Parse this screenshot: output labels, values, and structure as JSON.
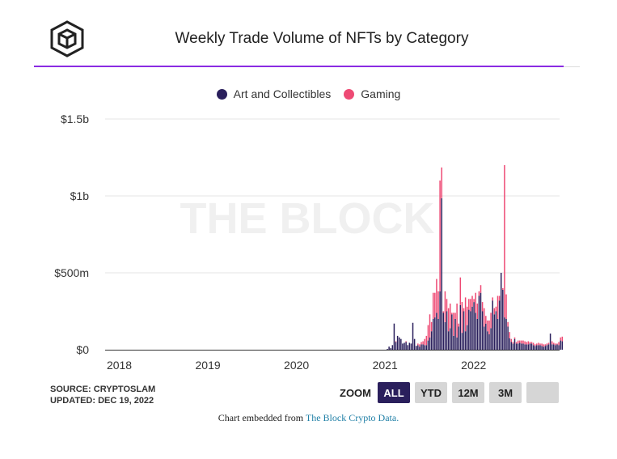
{
  "header": {
    "title": "Weekly Trade Volume of NFTs by Category",
    "logo_text": "THE BLOCK"
  },
  "footer": {
    "source": "SOURCE: CRYPTOSLAM",
    "updated": "UPDATED: DEC 19, 2022",
    "embed_prefix": "Chart embedded from ",
    "embed_link": "The Block Crypto Data."
  },
  "zoom": {
    "label": "ZOOM",
    "buttons": [
      "ALL",
      "YTD",
      "12M",
      "3M",
      ""
    ],
    "active": "ALL"
  },
  "colors": {
    "art": "#2a1f5c",
    "gaming": "#ee4a74",
    "grid": "#e6e6e6",
    "accent": "#8a2be2"
  },
  "chart_data": {
    "type": "bar",
    "stacked": true,
    "title": "Weekly Trade Volume of NFTs by Category",
    "watermark": "THE BLOCK",
    "xlabel": "",
    "ylabel": "",
    "x_start": "2021-01-08",
    "x_step": "week",
    "xlim": [
      2017.84,
      2022.97
    ],
    "ylim": [
      0,
      1500
    ],
    "y_unit": "$m",
    "yticks": [
      {
        "v": 0,
        "label": "$0"
      },
      {
        "v": 500,
        "label": "$500m"
      },
      {
        "v": 1000,
        "label": "$1b"
      },
      {
        "v": 1500,
        "label": "$1.5b"
      }
    ],
    "xticks": [
      {
        "v": 2018,
        "label": "2018"
      },
      {
        "v": 2019,
        "label": "2019"
      },
      {
        "v": 2020,
        "label": "2020"
      },
      {
        "v": 2021,
        "label": "2021"
      },
      {
        "v": 2022,
        "label": "2022"
      }
    ],
    "legend": "top-center",
    "series": [
      {
        "name": "Art and Collectibles",
        "values": [
          5,
          20,
          10,
          30,
          170,
          50,
          90,
          80,
          70,
          40,
          45,
          50,
          30,
          45,
          40,
          175,
          70,
          25,
          30,
          20,
          35,
          35,
          30,
          30,
          60,
          80,
          120,
          200,
          210,
          240,
          200,
          380,
          985,
          240,
          180,
          250,
          120,
          140,
          230,
          90,
          200,
          80,
          150,
          290,
          110,
          250,
          120,
          160,
          260,
          250,
          280,
          310,
          240,
          200,
          350,
          370,
          250,
          150,
          170,
          120,
          100,
          140,
          320,
          230,
          250,
          200,
          320,
          500,
          390,
          210,
          200,
          150,
          75,
          50,
          40,
          70,
          40,
          40,
          45,
          40,
          40,
          35,
          35,
          35,
          40,
          40,
          30,
          25,
          30,
          30,
          30,
          25,
          20,
          25,
          30,
          35,
          105,
          35,
          35,
          30,
          35,
          30,
          60,
          55
        ]
      },
      {
        "name": "Gaming",
        "values": [
          0,
          0,
          0,
          0,
          0,
          5,
          0,
          0,
          0,
          0,
          0,
          5,
          0,
          0,
          0,
          0,
          0,
          0,
          10,
          15,
          15,
          20,
          40,
          60,
          100,
          150,
          60,
          170,
          160,
          220,
          180,
          720,
          200,
          10,
          200,
          80,
          150,
          160,
          10,
          150,
          40,
          220,
          20,
          180,
          200,
          20,
          220,
          120,
          70,
          80,
          70,
          20,
          130,
          100,
          30,
          50,
          60,
          120,
          50,
          70,
          90,
          100,
          20,
          40,
          30,
          150,
          30,
          0,
          10,
          990,
          160,
          30,
          40,
          20,
          10,
          10,
          10,
          20,
          15,
          20,
          20,
          20,
          15,
          20,
          10,
          10,
          15,
          10,
          10,
          15,
          10,
          15,
          15,
          10,
          10,
          10,
          0,
          20,
          10,
          10,
          5,
          20,
          20,
          30
        ]
      }
    ]
  }
}
